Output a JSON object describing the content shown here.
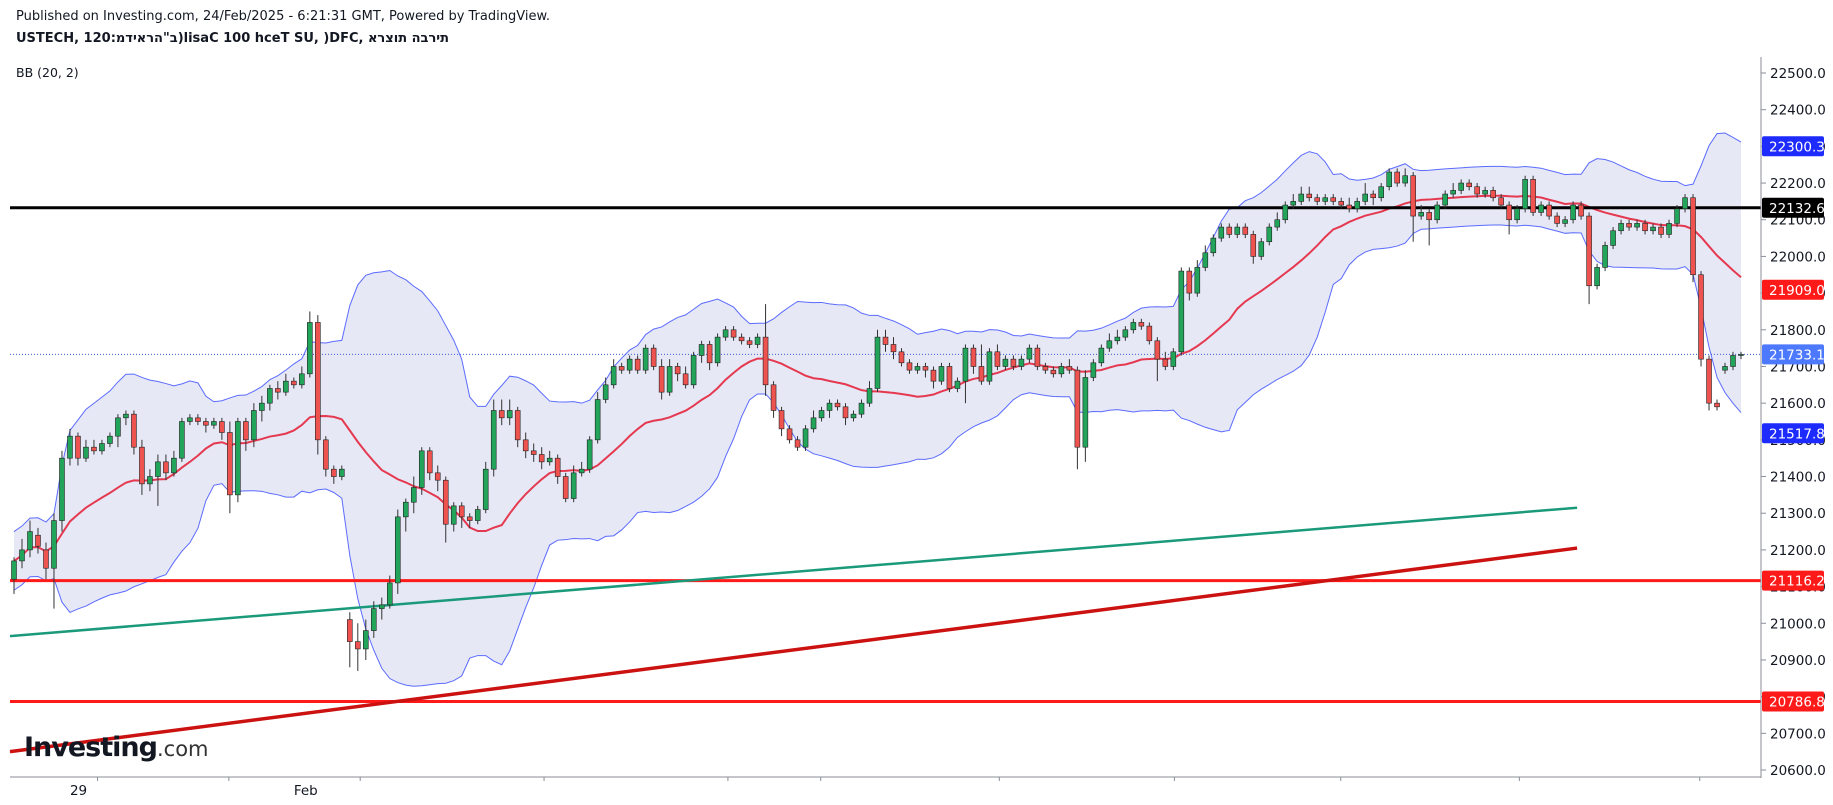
{
  "header": {
    "published": "Published on Investing.com, 24/Feb/2025 - 6:21:31 GMT, Powered by TradingView.",
    "symbol": "USTECH, 120:ב\"הראידמ)lisaC 100 hceT SU, )DFC, תירבה תוצרא",
    "indicator": "BB (20, 2)"
  },
  "logo": {
    "brand": "Investing",
    "suffix": ".com"
  },
  "chart_data": {
    "type": "candlestick",
    "y_axis": {
      "min": 20550,
      "max": 22550,
      "ticks": [
        20600,
        20700,
        20800,
        20900,
        21000,
        21100,
        21200,
        21300,
        21400,
        21500,
        21600,
        21700,
        21800,
        21900,
        22000,
        22100,
        22200,
        22300,
        22400,
        22500
      ]
    },
    "x_axis": {
      "labels": [
        {
          "text": "29",
          "index": 8
        },
        {
          "text": "Feb",
          "index": 36
        }
      ]
    },
    "price_badges": [
      {
        "value": "22300.3",
        "bg": "#1e2bff"
      },
      {
        "value": "22132.6",
        "bg": "#000000"
      },
      {
        "value": "21909.0",
        "bg": "#ff1a1a"
      },
      {
        "value": "21733.1",
        "bg": "#4d79ff"
      },
      {
        "value": "21517.8",
        "bg": "#1e2bff"
      },
      {
        "value": "21116.2",
        "bg": "#ff1a1a"
      },
      {
        "value": "20786.8",
        "bg": "#ff1a1a"
      }
    ],
    "horizontal_lines": [
      {
        "price": 22132.6,
        "color": "#000000",
        "width": 3
      },
      {
        "price": 21116.2,
        "color": "#ff1a1a",
        "width": 3
      },
      {
        "price": 20786.8,
        "color": "#ff1a1a",
        "width": 3
      }
    ],
    "dotted_line": {
      "price": 21733.1,
      "color": "#3b5bdb"
    },
    "trend_lines": [
      {
        "from": [
          0,
          20965
        ],
        "to": [
          196,
          21315
        ],
        "color": "#1a9a7a",
        "width": 2.5
      },
      {
        "from": [
          0,
          20650
        ],
        "to": [
          196,
          21205
        ],
        "color": "#cc1111",
        "width": 3.5
      }
    ],
    "colors": {
      "up": "#22a55b",
      "down": "#ef5350",
      "basis": "#e53950",
      "band": "#5b6bff",
      "band_fill": "#e6e8f6"
    },
    "candles": [
      [
        21120,
        21170,
        21080,
        21180
      ],
      [
        21170,
        21200,
        21150,
        21230
      ],
      [
        21200,
        21250,
        21180,
        21280
      ],
      [
        21240,
        21210,
        21190,
        21260
      ],
      [
        21200,
        21150,
        21120,
        21220
      ],
      [
        21150,
        21280,
        21040,
        21300
      ],
      [
        21280,
        21450,
        21250,
        21470
      ],
      [
        21450,
        21510,
        21430,
        21530
      ],
      [
        21510,
        21450,
        21430,
        21520
      ],
      [
        21450,
        21480,
        21440,
        21500
      ],
      [
        21480,
        21470,
        21460,
        21500
      ],
      [
        21470,
        21490,
        21460,
        21500
      ],
      [
        21490,
        21510,
        21480,
        21520
      ],
      [
        21510,
        21560,
        21480,
        21570
      ],
      [
        21560,
        21570,
        21540,
        21580
      ],
      [
        21570,
        21480,
        21460,
        21580
      ],
      [
        21480,
        21380,
        21350,
        21500
      ],
      [
        21380,
        21400,
        21360,
        21420
      ],
      [
        21400,
        21440,
        21320,
        21460
      ],
      [
        21440,
        21410,
        21390,
        21460
      ],
      [
        21410,
        21450,
        21400,
        21470
      ],
      [
        21450,
        21550,
        21440,
        21560
      ],
      [
        21550,
        21560,
        21540,
        21570
      ],
      [
        21560,
        21550,
        21540,
        21570
      ],
      [
        21550,
        21540,
        21520,
        21560
      ],
      [
        21540,
        21550,
        21530,
        21560
      ],
      [
        21550,
        21520,
        21500,
        21560
      ],
      [
        21520,
        21350,
        21300,
        21550
      ],
      [
        21350,
        21550,
        21330,
        21560
      ],
      [
        21550,
        21500,
        21470,
        21560
      ],
      [
        21500,
        21580,
        21480,
        21600
      ],
      [
        21580,
        21600,
        21550,
        21620
      ],
      [
        21600,
        21640,
        21580,
        21650
      ],
      [
        21640,
        21630,
        21610,
        21660
      ],
      [
        21630,
        21660,
        21620,
        21680
      ],
      [
        21660,
        21650,
        21640,
        21670
      ],
      [
        21650,
        21680,
        21640,
        21700
      ],
      [
        21680,
        21820,
        21670,
        21850
      ],
      [
        21820,
        21500,
        21460,
        21840
      ],
      [
        21500,
        21420,
        21400,
        21510
      ],
      [
        21420,
        21400,
        21380,
        21430
      ],
      [
        21400,
        21420,
        21390,
        21430
      ],
      [
        21010,
        20950,
        20880,
        21030
      ],
      [
        20950,
        20930,
        20870,
        21000
      ],
      [
        20930,
        20980,
        20900,
        21010
      ],
      [
        20980,
        21040,
        20960,
        21060
      ],
      [
        21040,
        21050,
        21010,
        21070
      ],
      [
        21050,
        21110,
        21040,
        21130
      ],
      [
        21110,
        21290,
        21080,
        21310
      ],
      [
        21290,
        21330,
        21250,
        21340
      ],
      [
        21330,
        21370,
        21300,
        21400
      ],
      [
        21370,
        21470,
        21350,
        21480
      ],
      [
        21470,
        21410,
        21390,
        21480
      ],
      [
        21410,
        21390,
        21360,
        21430
      ],
      [
        21390,
        21270,
        21220,
        21400
      ],
      [
        21270,
        21320,
        21250,
        21330
      ],
      [
        21320,
        21290,
        21260,
        21330
      ],
      [
        21290,
        21280,
        21260,
        21300
      ],
      [
        21280,
        21310,
        21270,
        21320
      ],
      [
        21310,
        21420,
        21300,
        21440
      ],
      [
        21420,
        21580,
        21400,
        21610
      ],
      [
        21580,
        21560,
        21540,
        21610
      ],
      [
        21560,
        21580,
        21540,
        21610
      ],
      [
        21580,
        21500,
        21480,
        21590
      ],
      [
        21500,
        21470,
        21450,
        21520
      ],
      [
        21470,
        21460,
        21440,
        21490
      ],
      [
        21460,
        21440,
        21420,
        21480
      ],
      [
        21440,
        21450,
        21430,
        21470
      ],
      [
        21450,
        21400,
        21380,
        21460
      ],
      [
        21400,
        21340,
        21330,
        21410
      ],
      [
        21340,
        21410,
        21330,
        21430
      ],
      [
        21410,
        21420,
        21400,
        21440
      ],
      [
        21420,
        21500,
        21410,
        21510
      ],
      [
        21500,
        21610,
        21490,
        21630
      ],
      [
        21610,
        21650,
        21600,
        21670
      ],
      [
        21650,
        21700,
        21640,
        21720
      ],
      [
        21700,
        21690,
        21680,
        21710
      ],
      [
        21690,
        21720,
        21680,
        21730
      ],
      [
        21720,
        21690,
        21680,
        21730
      ],
      [
        21690,
        21750,
        21680,
        21760
      ],
      [
        21750,
        21700,
        21690,
        21760
      ],
      [
        21700,
        21630,
        21610,
        21720
      ],
      [
        21630,
        21700,
        21620,
        21720
      ],
      [
        21700,
        21680,
        21660,
        21710
      ],
      [
        21680,
        21650,
        21640,
        21700
      ],
      [
        21650,
        21730,
        21640,
        21740
      ],
      [
        21730,
        21760,
        21710,
        21770
      ],
      [
        21760,
        21710,
        21690,
        21770
      ],
      [
        21710,
        21780,
        21700,
        21790
      ],
      [
        21780,
        21800,
        21770,
        21810
      ],
      [
        21800,
        21780,
        21770,
        21810
      ],
      [
        21780,
        21770,
        21760,
        21790
      ],
      [
        21770,
        21760,
        21750,
        21780
      ],
      [
        21760,
        21780,
        21750,
        21790
      ],
      [
        21780,
        21650,
        21620,
        21870
      ],
      [
        21650,
        21580,
        21560,
        21660
      ],
      [
        21580,
        21530,
        21510,
        21590
      ],
      [
        21530,
        21500,
        21490,
        21540
      ],
      [
        21500,
        21480,
        21470,
        21510
      ],
      [
        21480,
        21530,
        21470,
        21540
      ],
      [
        21530,
        21560,
        21520,
        21580
      ],
      [
        21560,
        21580,
        21550,
        21590
      ],
      [
        21580,
        21600,
        21560,
        21610
      ],
      [
        21600,
        21590,
        21580,
        21610
      ],
      [
        21590,
        21560,
        21540,
        21600
      ],
      [
        21560,
        21570,
        21550,
        21580
      ],
      [
        21570,
        21600,
        21560,
        21610
      ],
      [
        21600,
        21640,
        21590,
        21660
      ],
      [
        21640,
        21780,
        21630,
        21800
      ],
      [
        21780,
        21760,
        21740,
        21800
      ],
      [
        21760,
        21740,
        21720,
        21780
      ],
      [
        21740,
        21710,
        21700,
        21750
      ],
      [
        21710,
        21690,
        21680,
        21720
      ],
      [
        21690,
        21700,
        21680,
        21710
      ],
      [
        21700,
        21690,
        21670,
        21710
      ],
      [
        21690,
        21660,
        21640,
        21700
      ],
      [
        21660,
        21700,
        21650,
        21710
      ],
      [
        21700,
        21640,
        21630,
        21710
      ],
      [
        21640,
        21660,
        21630,
        21670
      ],
      [
        21660,
        21750,
        21600,
        21760
      ],
      [
        21750,
        21700,
        21680,
        21760
      ],
      [
        21700,
        21660,
        21650,
        21760
      ],
      [
        21660,
        21740,
        21650,
        21750
      ],
      [
        21740,
        21700,
        21690,
        21760
      ],
      [
        21700,
        21720,
        21690,
        21730
      ],
      [
        21720,
        21700,
        21690,
        21730
      ],
      [
        21700,
        21720,
        21690,
        21730
      ],
      [
        21720,
        21750,
        21710,
        21760
      ],
      [
        21750,
        21700,
        21690,
        21760
      ],
      [
        21700,
        21690,
        21680,
        21710
      ],
      [
        21690,
        21680,
        21670,
        21700
      ],
      [
        21680,
        21700,
        21670,
        21710
      ],
      [
        21700,
        21690,
        21680,
        21720
      ],
      [
        21690,
        21480,
        21420,
        21700
      ],
      [
        21480,
        21670,
        21440,
        21690
      ],
      [
        21670,
        21710,
        21660,
        21720
      ],
      [
        21710,
        21750,
        21700,
        21760
      ],
      [
        21750,
        21770,
        21740,
        21790
      ],
      [
        21770,
        21780,
        21760,
        21800
      ],
      [
        21780,
        21800,
        21770,
        21810
      ],
      [
        21800,
        21820,
        21790,
        21830
      ],
      [
        21820,
        21810,
        21800,
        21830
      ],
      [
        21810,
        21770,
        21760,
        21820
      ],
      [
        21770,
        21720,
        21660,
        21780
      ],
      [
        21720,
        21700,
        21690,
        21740
      ],
      [
        21700,
        21740,
        21690,
        21750
      ],
      [
        21740,
        21960,
        21730,
        21970
      ],
      [
        21960,
        21900,
        21880,
        21970
      ],
      [
        21900,
        21970,
        21890,
        21990
      ],
      [
        21970,
        22010,
        21960,
        22030
      ],
      [
        22010,
        22050,
        22000,
        22060
      ],
      [
        22050,
        22080,
        22040,
        22090
      ],
      [
        22080,
        22060,
        22050,
        22090
      ],
      [
        22060,
        22080,
        22050,
        22090
      ],
      [
        22080,
        22060,
        22050,
        22090
      ],
      [
        22060,
        22000,
        21980,
        22070
      ],
      [
        22000,
        22040,
        21990,
        22050
      ],
      [
        22040,
        22080,
        22030,
        22090
      ],
      [
        22080,
        22100,
        22070,
        22120
      ],
      [
        22100,
        22140,
        22090,
        22150
      ],
      [
        22140,
        22150,
        22130,
        22170
      ],
      [
        22150,
        22170,
        22140,
        22190
      ],
      [
        22170,
        22160,
        22150,
        22190
      ],
      [
        22160,
        22150,
        22140,
        22170
      ],
      [
        22150,
        22160,
        22140,
        22170
      ],
      [
        22160,
        22150,
        22140,
        22170
      ],
      [
        22150,
        22140,
        22130,
        22160
      ],
      [
        22140,
        22130,
        22120,
        22160
      ],
      [
        22130,
        22150,
        22120,
        22160
      ],
      [
        22150,
        22170,
        22140,
        22200
      ],
      [
        22170,
        22160,
        22140,
        22180
      ],
      [
        22160,
        22190,
        22150,
        22200
      ],
      [
        22190,
        22230,
        22180,
        22240
      ],
      [
        22230,
        22200,
        22190,
        22240
      ],
      [
        22200,
        22220,
        22190,
        22240
      ],
      [
        22220,
        22110,
        22040,
        22230
      ],
      [
        22110,
        22120,
        22100,
        22140
      ],
      [
        22120,
        22100,
        22030,
        22130
      ],
      [
        22100,
        22140,
        22090,
        22150
      ],
      [
        22140,
        22170,
        22130,
        22180
      ],
      [
        22170,
        22180,
        22160,
        22200
      ],
      [
        22180,
        22200,
        22170,
        22210
      ],
      [
        22200,
        22190,
        22180,
        22210
      ],
      [
        22190,
        22170,
        22160,
        22200
      ],
      [
        22170,
        22180,
        22160,
        22190
      ],
      [
        22180,
        22160,
        22150,
        22190
      ],
      [
        22160,
        22140,
        22130,
        22170
      ],
      [
        22140,
        22100,
        22060,
        22150
      ],
      [
        22100,
        22130,
        22090,
        22140
      ],
      [
        22130,
        22210,
        22120,
        22220
      ],
      [
        22210,
        22120,
        22110,
        22220
      ],
      [
        22120,
        22140,
        22110,
        22150
      ],
      [
        22140,
        22110,
        22100,
        22150
      ],
      [
        22110,
        22090,
        22080,
        22120
      ],
      [
        22090,
        22100,
        22080,
        22110
      ],
      [
        22100,
        22140,
        22090,
        22150
      ],
      [
        22140,
        22110,
        22100,
        22150
      ],
      [
        22110,
        21920,
        21870,
        22120
      ],
      [
        21920,
        21970,
        21910,
        21980
      ],
      [
        21970,
        22030,
        21960,
        22040
      ],
      [
        22030,
        22070,
        22020,
        22080
      ],
      [
        22070,
        22090,
        22060,
        22100
      ],
      [
        22090,
        22080,
        22070,
        22100
      ],
      [
        22080,
        22090,
        22070,
        22100
      ],
      [
        22090,
        22070,
        22060,
        22100
      ],
      [
        22070,
        22080,
        22060,
        22090
      ],
      [
        22080,
        22060,
        22050,
        22090
      ],
      [
        22060,
        22090,
        22050,
        22100
      ],
      [
        22090,
        22130,
        22080,
        22140
      ],
      [
        22130,
        22160,
        22120,
        22170
      ],
      [
        22160,
        21950,
        21930,
        22170
      ],
      [
        21950,
        21720,
        21700,
        21960
      ],
      [
        21720,
        21600,
        21580,
        21730
      ],
      [
        21600,
        21590,
        21580,
        21610
      ],
      [
        21690,
        21700,
        21680,
        21710
      ],
      [
        21700,
        21730,
        21690,
        21740
      ],
      [
        21730,
        21733,
        21720,
        21740
      ]
    ]
  }
}
